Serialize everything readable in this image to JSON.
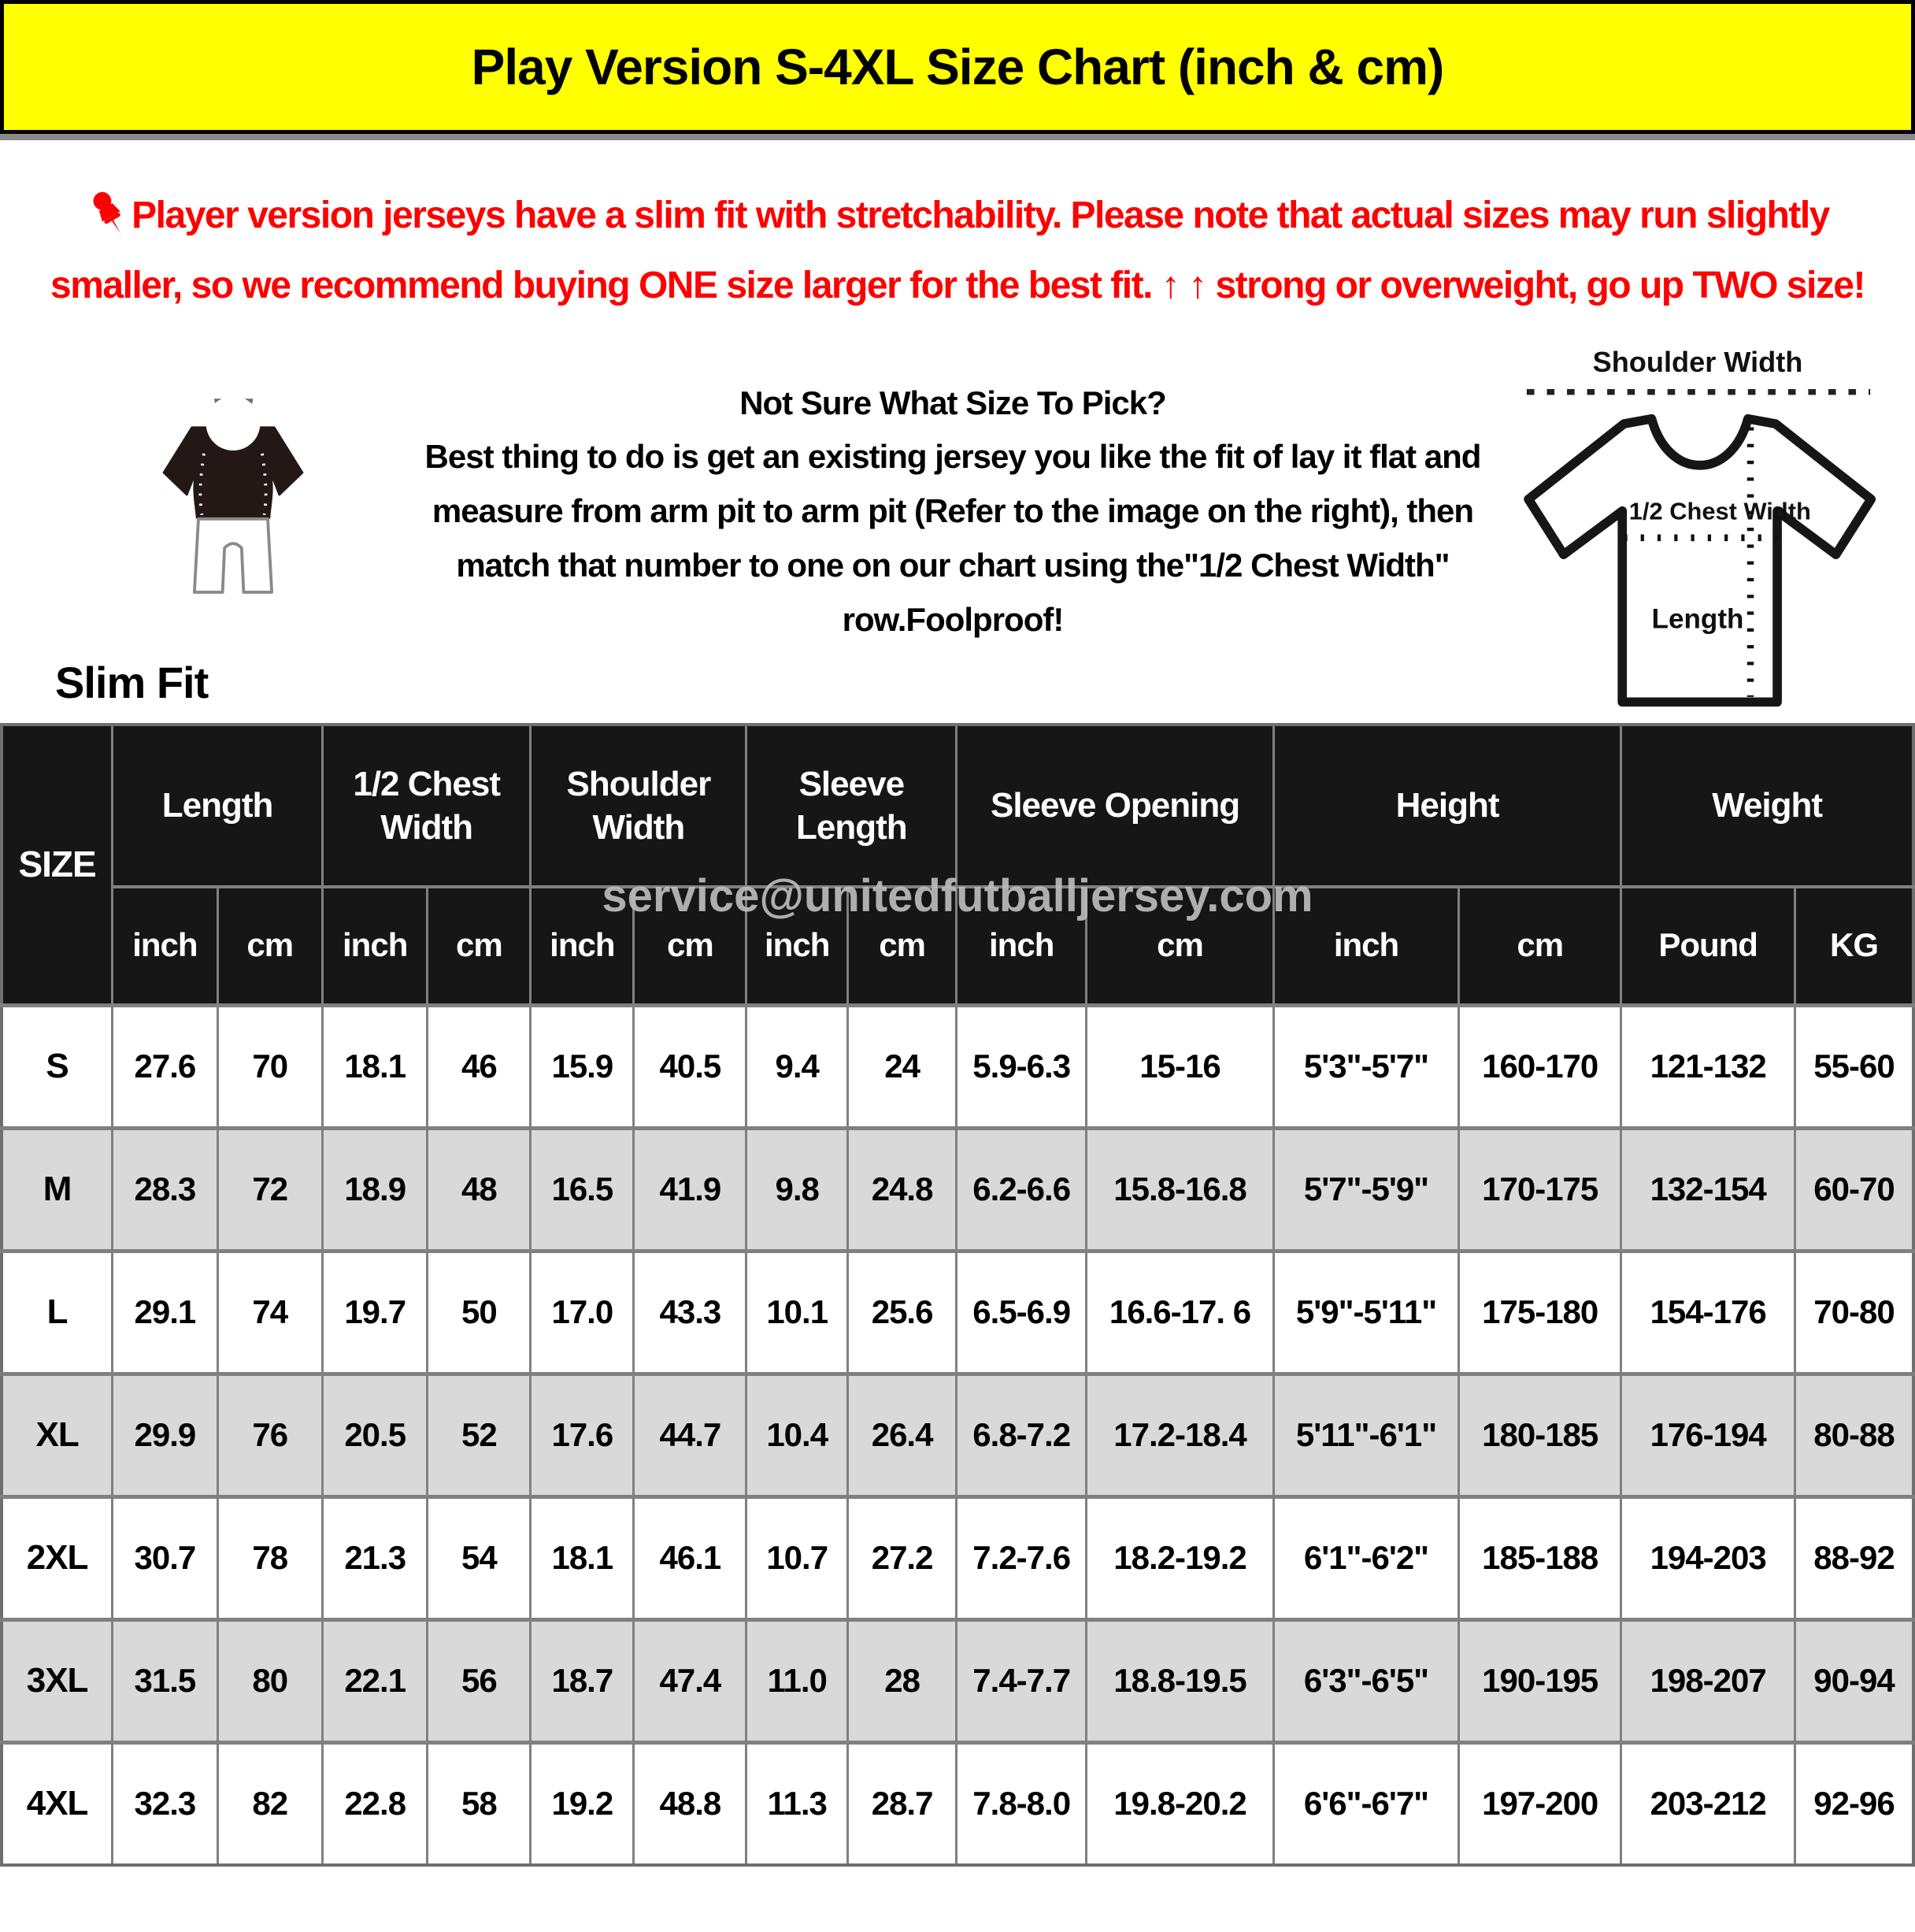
{
  "title": "Play Version S-4XL Size Chart (inch & cm)",
  "notice": {
    "text": "Player version jerseys have a slim fit with stretchability. Please note that actual sizes may run slightly smaller, so we recommend buying ONE size larger for the best fit. ↑ ↑ strong or overweight, go up TWO size!"
  },
  "guide": {
    "slim_fit_label": "Slim Fit",
    "heading": "Not Sure What Size To Pick?",
    "body": "Best thing to do is get an existing jersey you like the fit of lay it flat and measure from arm pit to arm pit (Refer to the image on the right), then match that number to one on our chart using the\"1/2 Chest Width\" row.Foolproof!"
  },
  "diagram": {
    "shoulder_width_label": "Shoulder Width",
    "half_chest_label": "1/2 Chest Width",
    "length_label": "Length"
  },
  "watermark": "service@unitedfutballjersey.com",
  "colors": {
    "banner_bg": "#FFFF00",
    "notice_text": "#FF0000",
    "header_bg": "#161616",
    "row_alt_bg": "#D9D9D9",
    "border": "#808080",
    "watermark": "#BCBCBC"
  },
  "table": {
    "size_header": "SIZE",
    "groups": [
      {
        "label": "Length",
        "sub": [
          "inch",
          "cm"
        ]
      },
      {
        "label": "1/2 Chest Width",
        "sub": [
          "inch",
          "cm"
        ]
      },
      {
        "label": "Shoulder Width",
        "sub": [
          "inch",
          "cm"
        ]
      },
      {
        "label": "Sleeve Length",
        "sub": [
          "inch",
          "cm"
        ]
      },
      {
        "label": "Sleeve Opening",
        "sub": [
          "inch",
          "cm"
        ]
      },
      {
        "label": "Height",
        "sub": [
          "inch",
          "cm"
        ]
      },
      {
        "label": "Weight",
        "sub": [
          "Pound",
          "KG"
        ]
      }
    ],
    "rows": [
      {
        "size": "S",
        "cells": [
          "27.6",
          "70",
          "18.1",
          "46",
          "15.9",
          "40.5",
          "9.4",
          "24",
          "5.9-6.3",
          "15-16",
          "5'3\"-5'7\"",
          "160-170",
          "121-132",
          "55-60"
        ]
      },
      {
        "size": "M",
        "cells": [
          "28.3",
          "72",
          "18.9",
          "48",
          "16.5",
          "41.9",
          "9.8",
          "24.8",
          "6.2-6.6",
          "15.8-16.8",
          "5'7\"-5'9\"",
          "170-175",
          "132-154",
          "60-70"
        ]
      },
      {
        "size": "L",
        "cells": [
          "29.1",
          "74",
          "19.7",
          "50",
          "17.0",
          "43.3",
          "10.1",
          "25.6",
          "6.5-6.9",
          "16.6-17. 6",
          "5'9\"-5'11\"",
          "175-180",
          "154-176",
          "70-80"
        ]
      },
      {
        "size": "XL",
        "cells": [
          "29.9",
          "76",
          "20.5",
          "52",
          "17.6",
          "44.7",
          "10.4",
          "26.4",
          "6.8-7.2",
          "17.2-18.4",
          "5'11\"-6'1\"",
          "180-185",
          "176-194",
          "80-88"
        ]
      },
      {
        "size": "2XL",
        "cells": [
          "30.7",
          "78",
          "21.3",
          "54",
          "18.1",
          "46.1",
          "10.7",
          "27.2",
          "7.2-7.6",
          "18.2-19.2",
          "6'1\"-6'2\"",
          "185-188",
          "194-203",
          "88-92"
        ]
      },
      {
        "size": "3XL",
        "cells": [
          "31.5",
          "80",
          "22.1",
          "56",
          "18.7",
          "47.4",
          "11.0",
          "28",
          "7.4-7.7",
          "18.8-19.5",
          "6'3\"-6'5\"",
          "190-195",
          "198-207",
          "90-94"
        ]
      },
      {
        "size": "4XL",
        "cells": [
          "32.3",
          "82",
          "22.8",
          "58",
          "19.2",
          "48.8",
          "11.3",
          "28.7",
          "7.8-8.0",
          "19.8-20.2",
          "6'6\"-6'7\"",
          "197-200",
          "203-212",
          "92-96"
        ]
      }
    ]
  }
}
